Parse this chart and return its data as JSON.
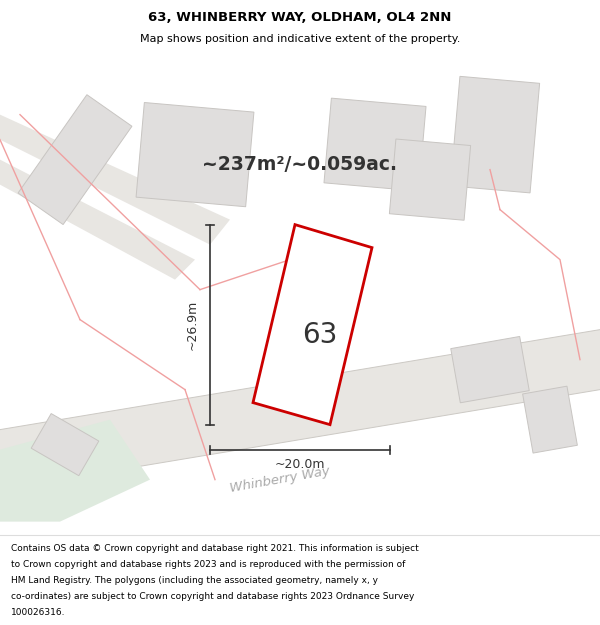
{
  "title": "63, WHINBERRY WAY, OLDHAM, OL4 2NN",
  "subtitle": "Map shows position and indicative extent of the property.",
  "area_text": "~237m²/~0.059ac.",
  "property_number": "63",
  "dim_width": "~20.0m",
  "dim_height": "~26.9m",
  "footer_lines": [
    "Contains OS data © Crown copyright and database right 2021. This information is subject",
    "to Crown copyright and database rights 2023 and is reproduced with the permission of",
    "HM Land Registry. The polygons (including the associated geometry, namely x, y",
    "co-ordinates) are subject to Crown copyright and database rights 2023 Ordnance Survey",
    "100026316."
  ],
  "map_bg": "#ffffff",
  "road_fill": "#e8e6e2",
  "building_fill": "#e0dedd",
  "building_edge": "#c8c5c2",
  "property_fill": "#ffffff",
  "property_edge": "#cc0000",
  "green_fill": "#deeade",
  "boundary_color": "#f0a0a0",
  "dim_color": "#333333",
  "road_label_color": "#aaaaaa",
  "title_color": "#000000",
  "footer_color": "#000000"
}
